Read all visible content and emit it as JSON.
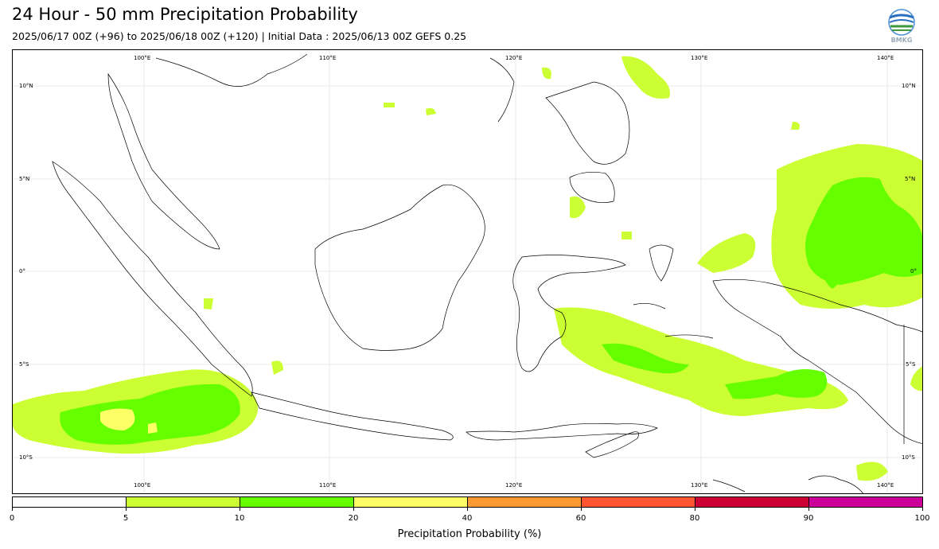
{
  "header": {
    "title": "24 Hour - 50 mm Precipitation Probability",
    "subtitle": "2025/06/17 00Z (+96) to 2025/06/18 00Z (+120) | Initial Data : 2025/06/13 00Z GEFS 0.25",
    "logo_text": "BMKG"
  },
  "map": {
    "lon_range": [
      95,
      144
    ],
    "lat_range": [
      -12,
      12
    ],
    "top_lon_labels": [
      "100°E",
      "110°E",
      "120°E",
      "130°E",
      "140°E"
    ],
    "bottom_lon_labels": [
      "100°E",
      "110°E",
      "120°E",
      "130°E",
      "140°E"
    ],
    "left_lat_labels": [
      "10°N",
      "5°N",
      "0°",
      "5°S",
      "10°S"
    ],
    "right_lat_labels": [
      "10°N",
      "5°N",
      "0°",
      "5°S",
      "10°S"
    ]
  },
  "colorbar": {
    "label": "Precipitation Probability (%)",
    "ticks": [
      "0",
      "5",
      "10",
      "20",
      "40",
      "60",
      "80",
      "90",
      "100"
    ],
    "colors": [
      "#ffffff",
      "#ccff33",
      "#66ff00",
      "#ffff66",
      "#ff9933",
      "#ff5533",
      "#cc0033",
      "#cc0099"
    ]
  }
}
